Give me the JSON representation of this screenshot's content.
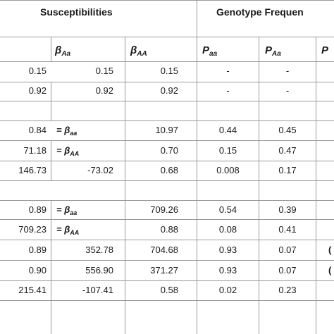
{
  "header": {
    "group1": "Susceptibilities",
    "group2": "Genotype Frequen"
  },
  "columns": [
    {
      "sym": "β",
      "sub": "Aa"
    },
    {
      "sym": "β",
      "sub": "AA"
    },
    {
      "sym": "P",
      "sub": "aa"
    },
    {
      "sym": "P",
      "sub": "Aa"
    },
    {
      "sym": "P",
      "sub": ""
    }
  ],
  "eq_symbol": "= β",
  "rows": [
    {
      "c0": "0.15",
      "c1": "0.15",
      "c2": "0.15",
      "c3": "-",
      "c4": "-",
      "c5": ""
    },
    {
      "c0": "0.92",
      "c1": "0.92",
      "c2": "0.92",
      "c3": "-",
      "c4": "-",
      "c5": ""
    },
    {
      "c0": "0.84",
      "eq1": "aa",
      "c2": "10.97",
      "c3": "0.44",
      "c4": "0.45",
      "c5": ""
    },
    {
      "c0": "71.18",
      "eq1": "AA",
      "c2": "0.70",
      "c3": "0.15",
      "c4": "0.47",
      "c5": ""
    },
    {
      "c0": "146.73",
      "c1": "-73.02",
      "c2": "0.68",
      "c3": "0.008",
      "c4": "0.17",
      "c5": ""
    },
    {
      "c0": "0.89",
      "eq1": "aa",
      "c2": "709.26",
      "c3": "0.54",
      "c4": "0.39",
      "c5": ""
    },
    {
      "c0": "709.23",
      "eq1": "AA",
      "c2": "0.88",
      "c3": "0.08",
      "c4": "0.41",
      "c5": ""
    },
    {
      "c0": "0.89",
      "c1": "352.78",
      "c2": "704.68",
      "c3": "0.93",
      "c4": "0.07",
      "c5": "("
    },
    {
      "c0": "0.90",
      "c1": "556.90",
      "c2": "371.27",
      "c3": "0.93",
      "c4": "0.07",
      "c5": "("
    },
    {
      "c0": "215.41",
      "c1": "-107.41",
      "c2": "0.58",
      "c3": "0.02",
      "c4": "0.23",
      "c5": ""
    }
  ]
}
